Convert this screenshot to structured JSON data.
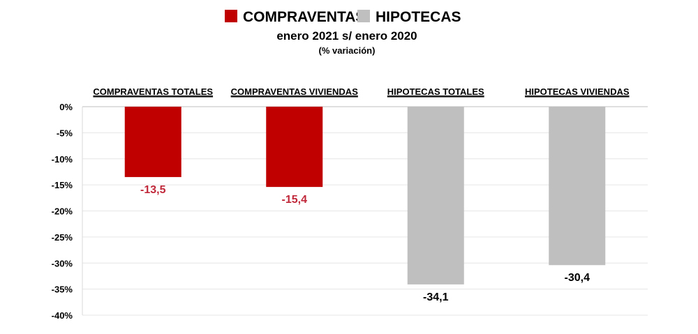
{
  "chart_data": {
    "type": "bar",
    "title": "",
    "subtitle": "enero 2021  s/ enero 2020",
    "note": "(% variación)",
    "legend": [
      {
        "name": "COMPRAVENTAS",
        "color": "#c00000"
      },
      {
        "name": "HIPOTECAS",
        "color": "#bfbfbf"
      }
    ],
    "categories": [
      "COMPRAVENTAS TOTALES",
      "COMPRAVENTAS VIVIENDAS",
      "HIPOTECAS TOTALES",
      "HIPOTECAS VIVIENDAS"
    ],
    "values": [
      -13.5,
      -15.4,
      -34.1,
      -30.4
    ],
    "value_labels": [
      "-13,5",
      "-15,4",
      "-34,1",
      "-30,4"
    ],
    "bar_colors": [
      "#c00000",
      "#c00000",
      "#bfbfbf",
      "#bfbfbf"
    ],
    "label_colors": [
      "#c0283a",
      "#c0283a",
      "#000000",
      "#000000"
    ],
    "y_ticks": [
      0,
      -5,
      -10,
      -15,
      -20,
      -25,
      -30,
      -35,
      -40
    ],
    "y_tick_labels": [
      "0%",
      "-5%",
      "-10%",
      "-15%",
      "-20%",
      "-25%",
      "-30%",
      "-35%",
      "-40%"
    ],
    "ylim": [
      -40,
      0
    ],
    "xlabel": "",
    "ylabel": "",
    "grid": true,
    "legend_position": "top-center"
  }
}
